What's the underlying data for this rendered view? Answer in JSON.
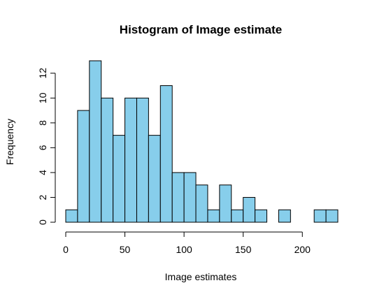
{
  "chart_data": {
    "type": "bar",
    "title": "Histogram of Image estimate",
    "xlabel": "Image estimates",
    "ylabel": "Frequency",
    "bin_width": 10,
    "bins": [
      {
        "start": 0,
        "end": 10,
        "count": 1
      },
      {
        "start": 10,
        "end": 20,
        "count": 9
      },
      {
        "start": 20,
        "end": 30,
        "count": 13
      },
      {
        "start": 30,
        "end": 40,
        "count": 10
      },
      {
        "start": 40,
        "end": 50,
        "count": 7
      },
      {
        "start": 50,
        "end": 60,
        "count": 10
      },
      {
        "start": 60,
        "end": 70,
        "count": 10
      },
      {
        "start": 70,
        "end": 80,
        "count": 7
      },
      {
        "start": 80,
        "end": 90,
        "count": 11
      },
      {
        "start": 90,
        "end": 100,
        "count": 4
      },
      {
        "start": 100,
        "end": 110,
        "count": 4
      },
      {
        "start": 110,
        "end": 120,
        "count": 3
      },
      {
        "start": 120,
        "end": 130,
        "count": 1
      },
      {
        "start": 130,
        "end": 140,
        "count": 3
      },
      {
        "start": 140,
        "end": 150,
        "count": 1
      },
      {
        "start": 150,
        "end": 160,
        "count": 2
      },
      {
        "start": 160,
        "end": 170,
        "count": 1
      },
      {
        "start": 170,
        "end": 180,
        "count": 0
      },
      {
        "start": 180,
        "end": 190,
        "count": 1
      },
      {
        "start": 190,
        "end": 200,
        "count": 0
      },
      {
        "start": 200,
        "end": 210,
        "count": 0
      },
      {
        "start": 210,
        "end": 220,
        "count": 1
      },
      {
        "start": 220,
        "end": 230,
        "count": 1
      }
    ],
    "xlim": [
      0,
      230
    ],
    "ylim": [
      0,
      13
    ],
    "xticks": [
      0,
      50,
      100,
      150,
      200
    ],
    "yticks": [
      0,
      2,
      4,
      6,
      8,
      10,
      12
    ],
    "bar_color": "#87ceeb",
    "grid": false,
    "legend": "none"
  }
}
